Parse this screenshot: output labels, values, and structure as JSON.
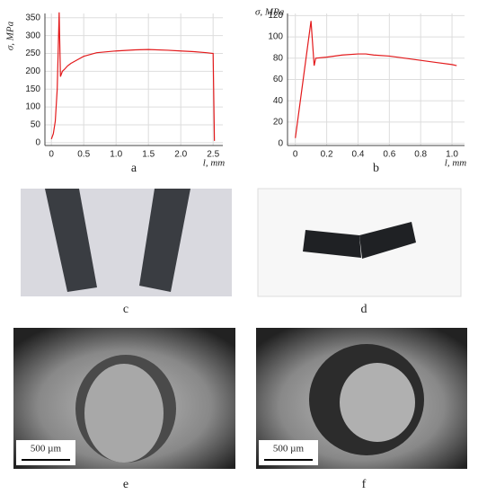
{
  "chart_data": [
    {
      "type": "line",
      "ylabel": "σ, MPa",
      "xlabel": "l, mm",
      "caption": "a",
      "x": [
        0,
        0.03,
        0.06,
        0.09,
        0.12,
        0.14,
        0.17,
        0.2,
        0.25,
        0.3,
        0.4,
        0.5,
        0.7,
        1.0,
        1.3,
        1.5,
        1.8,
        2.0,
        2.2,
        2.4,
        2.5,
        2.52
      ],
      "series": [
        {
          "name": "a",
          "color": "#e31a1c",
          "values": [
            10,
            25,
            60,
            150,
            365,
            185,
            200,
            205,
            215,
            222,
            232,
            242,
            252,
            257,
            260,
            261,
            259,
            257,
            255,
            252,
            250,
            5
          ]
        }
      ],
      "xlim": [
        -0.1,
        2.65
      ],
      "ylim": [
        -8,
        362
      ],
      "xticks": [
        0,
        0.5,
        {
          "value": 1,
          "label": "1.0"
        },
        1.5,
        {
          "value": 2,
          "label": "2.0"
        },
        2.5
      ],
      "yticks": [
        0,
        50,
        100,
        150,
        200,
        250,
        300,
        350
      ],
      "grid": true
    },
    {
      "type": "line",
      "ylabel": "σ, MPa",
      "xlabel": "l, mm",
      "caption": "b",
      "x": [
        0,
        0.05,
        0.1,
        0.12,
        0.13,
        0.2,
        0.3,
        0.4,
        0.45,
        0.5,
        0.6,
        0.7,
        0.8,
        0.9,
        1.0,
        1.03
      ],
      "series": [
        {
          "name": "b",
          "color": "#e31a1c",
          "values": [
            5,
            60,
            115,
            73,
            80,
            81,
            83,
            84,
            84,
            83,
            82,
            80,
            78,
            76,
            74,
            73
          ]
        }
      ],
      "xlim": [
        -0.05,
        1.08
      ],
      "ylim": [
        -2,
        122
      ],
      "xticks": [
        0,
        0.2,
        0.4,
        0.6,
        0.8,
        {
          "value": 1,
          "label": "1.0"
        }
      ],
      "yticks": [
        0,
        20,
        40,
        60,
        80,
        100,
        120
      ],
      "grid": true
    }
  ],
  "photos": [
    {
      "caption": "c"
    },
    {
      "caption": "d"
    },
    {
      "caption": "e",
      "scale_bar": "500 µm"
    },
    {
      "caption": "f",
      "scale_bar": "500 µm"
    }
  ]
}
